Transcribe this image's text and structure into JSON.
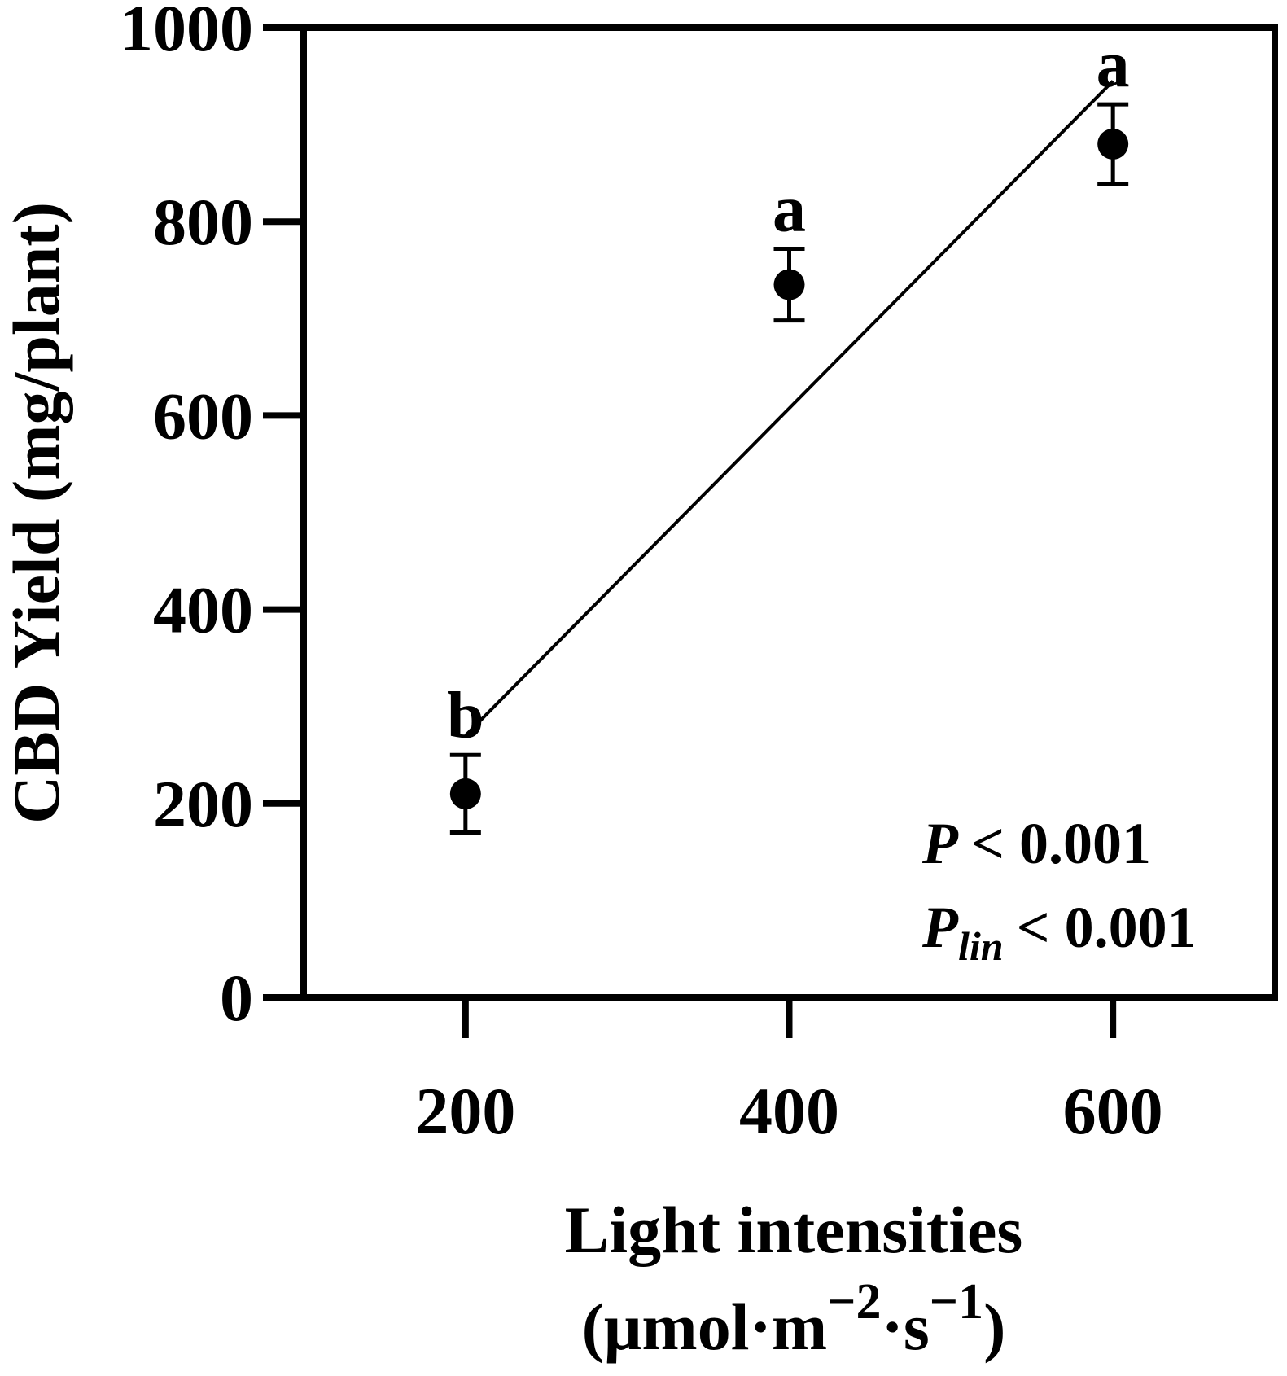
{
  "chart_data": {
    "type": "scatter",
    "title": "",
    "xlabel_line1": "Light intensities",
    "xlabel_unit": {
      "open": "(μmol·m",
      "exp1": "−2",
      "mid": "·s",
      "exp2": "−1",
      "close": ")"
    },
    "ylabel": "CBD Yield (mg/plant)",
    "xlim": [
      100,
      700
    ],
    "ylim": [
      0,
      1000
    ],
    "x_ticks": [
      200,
      400,
      600
    ],
    "x_tick_labels": [
      "200",
      "400",
      "600"
    ],
    "y_ticks": [
      0,
      200,
      400,
      600,
      800,
      1000
    ],
    "y_tick_labels": [
      "0",
      "200",
      "400",
      "600",
      "800",
      "1000"
    ],
    "grid": false,
    "points": [
      {
        "x": 200,
        "y": 210,
        "err": 40,
        "letter": "b"
      },
      {
        "x": 400,
        "y": 735,
        "err": 37,
        "letter": "a"
      },
      {
        "x": 600,
        "y": 880,
        "err": 41,
        "letter": "a"
      }
    ],
    "fit_line": {
      "x": [
        200,
        600
      ],
      "y": [
        270,
        945
      ]
    },
    "stats": {
      "p_symbol": "P",
      "p_text": "< 0.001",
      "plin_symbol": "P",
      "plin_sub": "lin",
      "plin_text": "< 0.001"
    }
  }
}
